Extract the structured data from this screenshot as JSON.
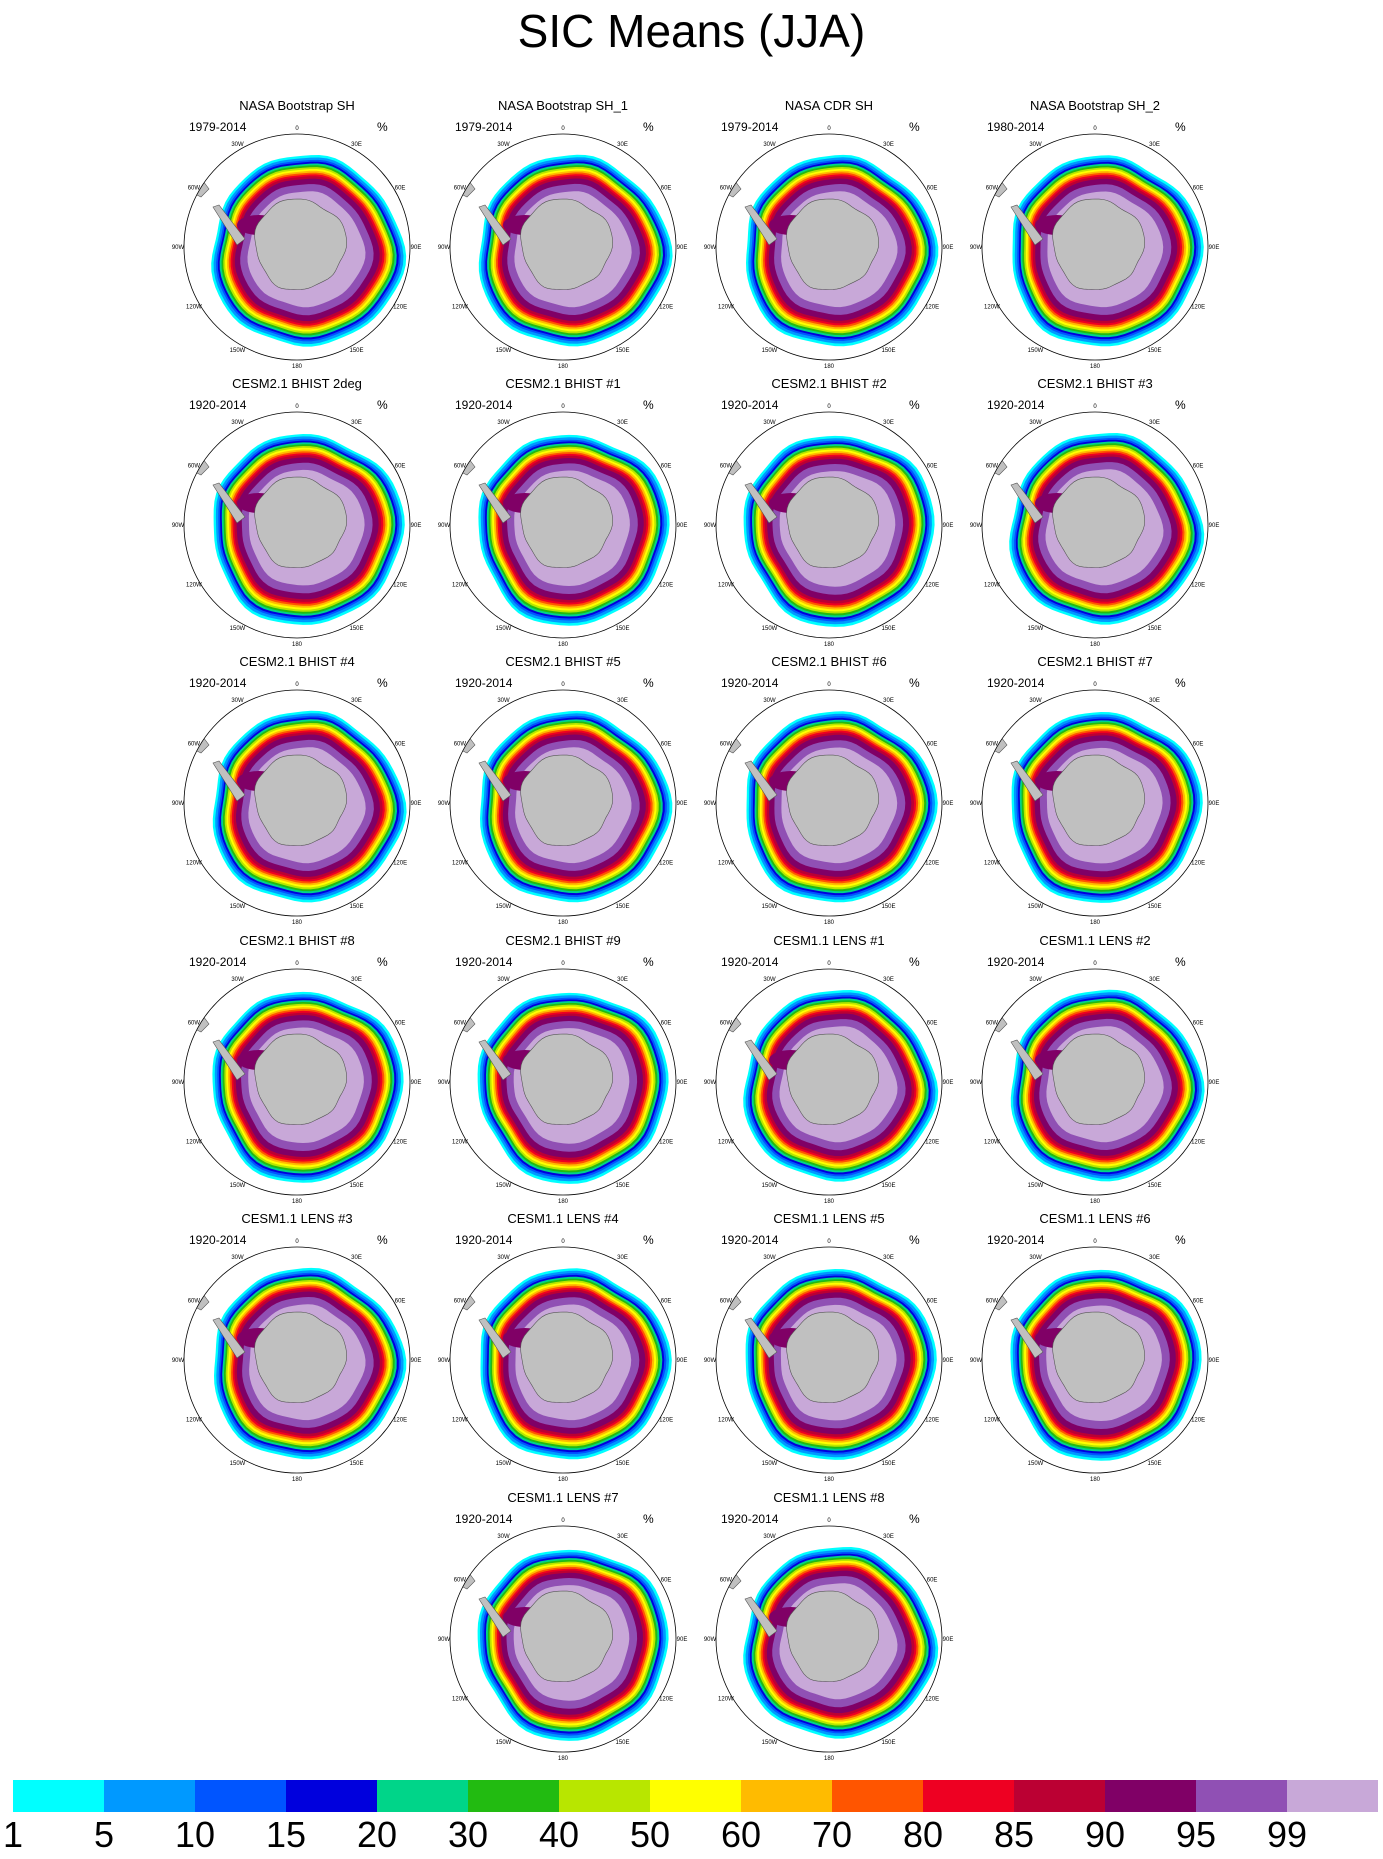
{
  "title": "SIC Means (JJA)",
  "unit": "%",
  "longitude_labels": [
    "0",
    "30E",
    "60E",
    "90E",
    "120E",
    "150E",
    "180",
    "150W",
    "120W",
    "90W",
    "60W",
    "30W"
  ],
  "panels": [
    {
      "name": "NASA Bootstrap SH",
      "years": "1979-2014"
    },
    {
      "name": "NASA Bootstrap SH_1",
      "years": "1979-2014"
    },
    {
      "name": "NASA CDR SH",
      "years": "1979-2014"
    },
    {
      "name": "NASA Bootstrap SH_2",
      "years": "1980-2014"
    },
    {
      "name": "CESM2.1 BHIST 2deg",
      "years": "1920-2014"
    },
    {
      "name": "CESM2.1 BHIST #1",
      "years": "1920-2014"
    },
    {
      "name": "CESM2.1 BHIST #2",
      "years": "1920-2014"
    },
    {
      "name": "CESM2.1 BHIST #3",
      "years": "1920-2014"
    },
    {
      "name": "CESM2.1 BHIST #4",
      "years": "1920-2014"
    },
    {
      "name": "CESM2.1 BHIST #5",
      "years": "1920-2014"
    },
    {
      "name": "CESM2.1 BHIST #6",
      "years": "1920-2014"
    },
    {
      "name": "CESM2.1 BHIST #7",
      "years": "1920-2014"
    },
    {
      "name": "CESM2.1 BHIST #8",
      "years": "1920-2014"
    },
    {
      "name": "CESM2.1 BHIST #9",
      "years": "1920-2014"
    },
    {
      "name": "CESM1.1 LENS #1",
      "years": "1920-2014"
    },
    {
      "name": "CESM1.1 LENS #2",
      "years": "1920-2014"
    },
    {
      "name": "CESM1.1 LENS #3",
      "years": "1920-2014"
    },
    {
      "name": "CESM1.1 LENS #4",
      "years": "1920-2014"
    },
    {
      "name": "CESM1.1 LENS #5",
      "years": "1920-2014"
    },
    {
      "name": "CESM1.1 LENS #6",
      "years": "1920-2014"
    },
    {
      "name": "CESM1.1 LENS #7",
      "years": "1920-2014"
    },
    {
      "name": "CESM1.1 LENS #8",
      "years": "1920-2014"
    }
  ],
  "colorbar": {
    "labels": [
      "1",
      "5",
      "10",
      "15",
      "20",
      "30",
      "40",
      "50",
      "60",
      "70",
      "80",
      "85",
      "90",
      "95",
      "99"
    ],
    "colors": [
      "#00ffff",
      "#0099ff",
      "#0055ff",
      "#0000dd",
      "#00d589",
      "#22bb11",
      "#b8e600",
      "#ffff00",
      "#ffbb00",
      "#ff5500",
      "#ee0022",
      "#bb0033",
      "#800066",
      "#9050b4",
      "#c8a8d8"
    ]
  },
  "land_color": "#c0c0c0"
}
